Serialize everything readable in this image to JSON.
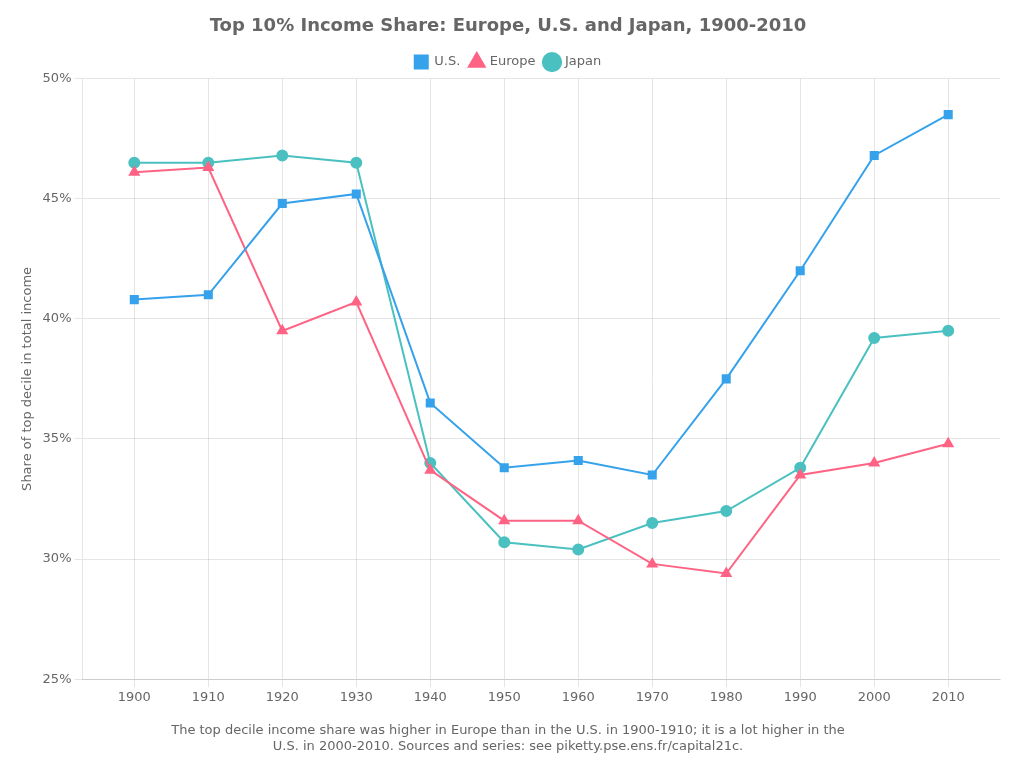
{
  "chart_data": {
    "type": "line",
    "title": "Top 10% Income Share: Europe, U.S. and Japan, 1900-2010",
    "subtitle": [
      "The top decile income share was higher in Europe than in the U.S. in 1900-1910; it is a lot higher in the",
      "U.S. in 2000-2010. Sources and series: see piketty.pse.ens.fr/capital21c."
    ],
    "ylabel": "Share of top decile in total income",
    "x": [
      1900,
      1910,
      1920,
      1930,
      1940,
      1950,
      1960,
      1970,
      1980,
      1990,
      2000,
      2010
    ],
    "series": [
      {
        "name": "U.S.",
        "marker": "square",
        "values": [
          40.8,
          41.0,
          44.8,
          45.2,
          36.5,
          33.8,
          34.1,
          33.5,
          37.5,
          42.0,
          46.8,
          48.5
        ]
      },
      {
        "name": "Europe",
        "marker": "triangle",
        "values": [
          46.1,
          46.3,
          39.5,
          40.7,
          33.7,
          31.6,
          31.6,
          29.8,
          29.4,
          33.5,
          34.0,
          34.8
        ]
      },
      {
        "name": "Japan",
        "marker": "circle",
        "values": [
          46.5,
          46.5,
          46.8,
          46.5,
          34.0,
          30.7,
          30.4,
          31.5,
          32.0,
          33.8,
          39.2,
          39.5
        ]
      }
    ],
    "xlim": [
      1893,
      2017
    ],
    "xticks": [
      1900,
      1910,
      1920,
      1930,
      1940,
      1950,
      1960,
      1970,
      1980,
      1990,
      2000,
      2010
    ],
    "ylim": [
      25,
      50
    ],
    "yticks": [
      {
        "value": 25,
        "label": "25%"
      },
      {
        "value": 30,
        "label": "30%"
      },
      {
        "value": 35,
        "label": "35%"
      },
      {
        "value": 40,
        "label": "40%"
      },
      {
        "value": 45,
        "label": "45%"
      },
      {
        "value": 50,
        "label": "50%"
      }
    ],
    "grid": true,
    "legend": "top"
  }
}
